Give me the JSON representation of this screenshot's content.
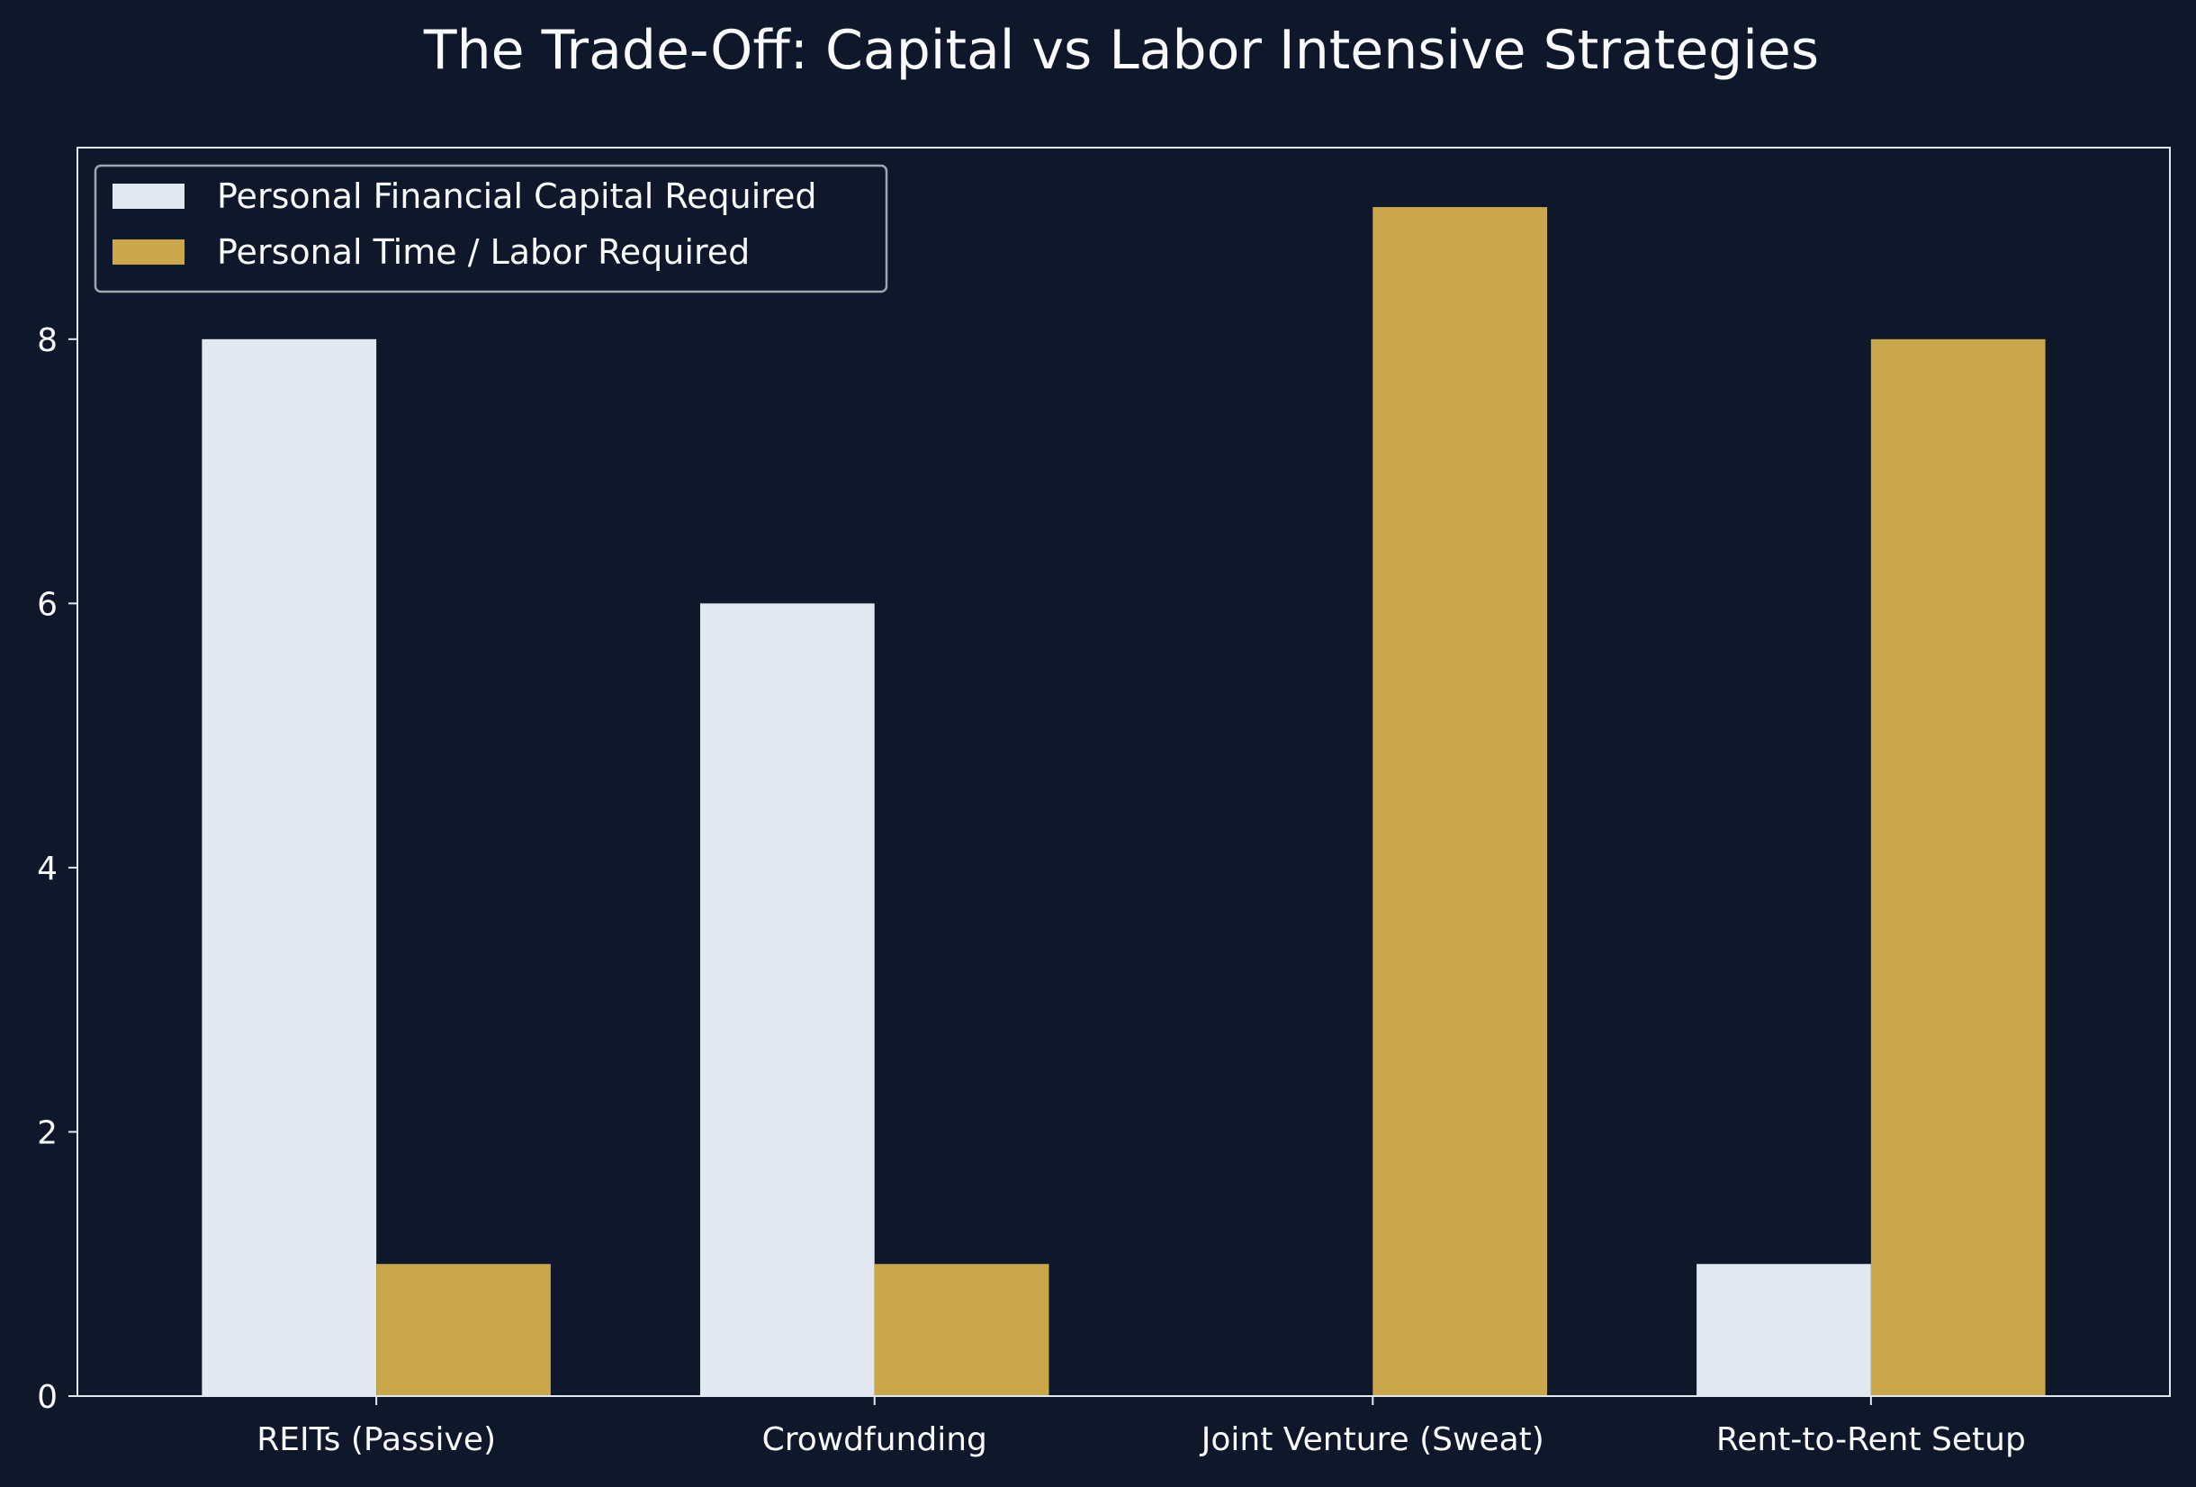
{
  "chart_data": {
    "type": "bar",
    "title": "The Trade-Off: Capital vs Labor Intensive Strategies",
    "xlabel": "",
    "ylabel": "",
    "categories": [
      "REITs (Passive)",
      "Crowdfunding",
      "Joint Venture (Sweat)",
      "Rent-to-Rent Setup"
    ],
    "series": [
      {
        "name": "Personal Financial Capital Required",
        "values": [
          8,
          6,
          0,
          1
        ],
        "color": "#e2e8f0"
      },
      {
        "name": "Personal Time / Labor Required",
        "values": [
          1,
          1,
          9,
          8
        ],
        "color": "#c9a74a"
      }
    ],
    "ylim": [
      0,
      9.45
    ],
    "yticks": [
      0,
      2,
      4,
      6,
      8
    ],
    "grid": false,
    "legend_position": "top-left"
  },
  "colors": {
    "background": "#0f172a",
    "axis": "#e2e8f0",
    "text": "#f8fafc"
  }
}
